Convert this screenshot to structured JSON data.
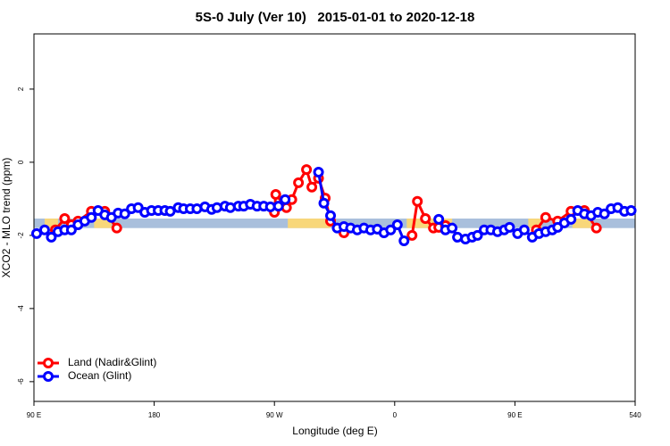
{
  "chart_data": {
    "type": "line",
    "title": "5S-0 July (Ver 10)   2015-01-01 to 2020-12-18",
    "x_label": "Longitude (deg E)",
    "y_label": "XCO2 - MLO trend (ppm)",
    "xlim": [
      90,
      540
    ],
    "ylim": [
      -6.54,
      3.51
    ],
    "xticks": [
      {
        "value": 90,
        "label": "90 E"
      },
      180,
      {
        "value": 270,
        "label": "90 W"
      },
      {
        "value": 360,
        "label": "0"
      },
      {
        "value": 450,
        "label": "90 E"
      },
      540
    ],
    "yticks": [
      -6,
      -4,
      -2,
      0,
      2
    ],
    "legend": "bottomleft",
    "reference_band": {
      "ylim": [
        -1.8,
        -1.54
      ],
      "color": "#a9bfdc"
    },
    "highlights": {
      "color": "#f8d77a",
      "ranges": [
        [
          98,
          108
        ],
        [
          135,
          148
        ],
        [
          280,
          312
        ],
        [
          369,
          403
        ],
        [
          460,
          470
        ],
        [
          493,
          507
        ]
      ]
    },
    "series": [
      {
        "name": "Land (Nadir&Glint)",
        "color": "#ff0000",
        "x": [
          106,
          113,
          118,
          123,
          133,
          143,
          152,
          null,
          270,
          271,
          279,
          283,
          288,
          294,
          298,
          303,
          308,
          312,
          322,
          null,
          373,
          377,
          383,
          389,
          393,
          398,
          null,
          466,
          473,
          482,
          492,
          502,
          511
        ],
        "values": [
          -1.85,
          -1.54,
          -1.71,
          -1.61,
          -1.34,
          -1.34,
          -1.8,
          null,
          -1.37,
          -0.88,
          -1.24,
          -1.02,
          -0.56,
          -0.2,
          -0.68,
          -0.44,
          -0.98,
          -1.61,
          -1.93,
          null,
          -2.0,
          -1.07,
          -1.54,
          -1.8,
          -1.78,
          -1.73,
          null,
          -1.85,
          -1.51,
          -1.61,
          -1.34,
          -1.32,
          -1.8
        ]
      },
      {
        "name": "Ocean (Glint)",
        "color": "#0000ff",
        "x": [
          92,
          98,
          103,
          108,
          113,
          118,
          123,
          128,
          133,
          138,
          143,
          148,
          153,
          158,
          163,
          168,
          173,
          178,
          183,
          188,
          192,
          198,
          202,
          207,
          212,
          218,
          223,
          227,
          233,
          237,
          243,
          247,
          252,
          257,
          262,
          267,
          273,
          278,
          null,
          303,
          307,
          312,
          317,
          322,
          327,
          332,
          337,
          342,
          347,
          352,
          357,
          362,
          367,
          null,
          393,
          398,
          403,
          407,
          413,
          418,
          422,
          427,
          432,
          437,
          442,
          446,
          452,
          457,
          463,
          468,
          473,
          478,
          482,
          487,
          492,
          497,
          502,
          507,
          512,
          517,
          522,
          527,
          532,
          537
        ],
        "values": [
          -1.95,
          -1.85,
          -2.05,
          -1.9,
          -1.85,
          -1.85,
          -1.71,
          -1.61,
          -1.51,
          -1.32,
          -1.44,
          -1.51,
          -1.39,
          -1.41,
          -1.27,
          -1.24,
          -1.37,
          -1.32,
          -1.32,
          -1.32,
          -1.34,
          -1.24,
          -1.27,
          -1.27,
          -1.27,
          -1.22,
          -1.29,
          -1.24,
          -1.2,
          -1.24,
          -1.2,
          -1.2,
          -1.15,
          -1.2,
          -1.2,
          -1.22,
          -1.2,
          -1.02,
          null,
          -0.27,
          -1.12,
          -1.46,
          -1.8,
          -1.76,
          -1.8,
          -1.85,
          -1.8,
          -1.85,
          -1.83,
          -1.93,
          -1.85,
          -1.71,
          -2.15,
          null,
          -1.56,
          -1.85,
          -1.8,
          -2.05,
          -2.1,
          -2.05,
          -2.0,
          -1.85,
          -1.85,
          -1.9,
          -1.85,
          -1.78,
          -1.95,
          -1.85,
          -2.05,
          -1.95,
          -1.9,
          -1.85,
          -1.78,
          -1.66,
          -1.56,
          -1.32,
          -1.41,
          -1.46,
          -1.37,
          -1.41,
          -1.27,
          -1.24,
          -1.34,
          -1.32
        ]
      }
    ]
  }
}
